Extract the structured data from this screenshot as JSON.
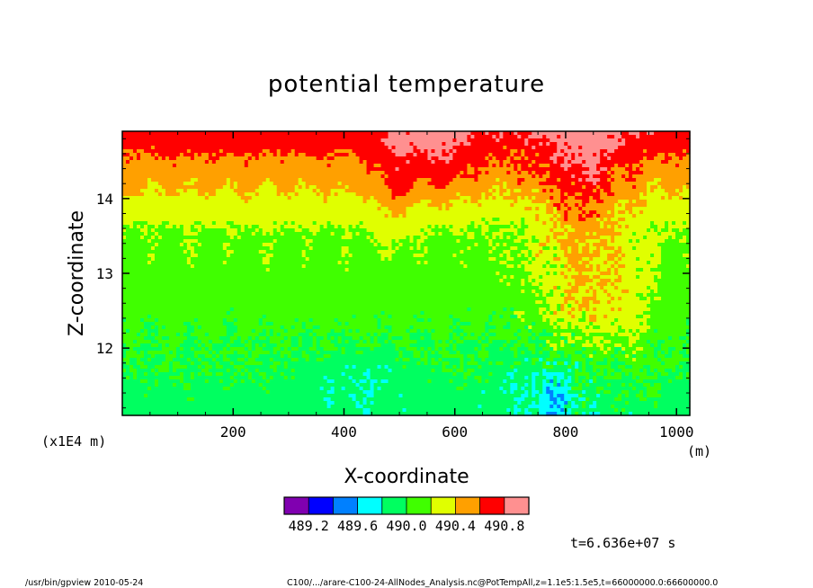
{
  "chart_data": {
    "type": "heatmap",
    "title": "potential temperature",
    "xlabel": "X-coordinate",
    "ylabel": "Z-coordinate",
    "x_unit": "(m)",
    "y_unit": "(x1E4 m)",
    "xlim": [
      0,
      1024
    ],
    "ylim": [
      11.1,
      14.9
    ],
    "x_ticks": [
      200,
      400,
      600,
      800,
      1000
    ],
    "y_ticks": [
      12,
      13,
      14
    ],
    "x_tick_labels": [
      "200",
      "400",
      "600",
      "800",
      "1000"
    ],
    "y_tick_labels": [
      "12",
      "13",
      "14"
    ],
    "colorbar": {
      "colors": [
        "#8000b0",
        "#0000ff",
        "#0080ff",
        "#00ffff",
        "#00ff60",
        "#40ff00",
        "#e0ff00",
        "#ffa000",
        "#ff0000",
        "#ff9090"
      ],
      "tick_labels": [
        "489.2",
        "489.6",
        "490.0",
        "490.4",
        "490.8"
      ]
    },
    "base_value": 490.1,
    "value_step": 0.2,
    "time_label": "t=6.636e+07 s"
  },
  "footer": {
    "left": "/usr/bin/gpview  2010-05-24",
    "right": "C100/.../arare-C100-24-AllNodes_Analysis.nc@PotTempAll,z=1.1e5:1.5e5,t=66000000.0:66600000.0"
  }
}
